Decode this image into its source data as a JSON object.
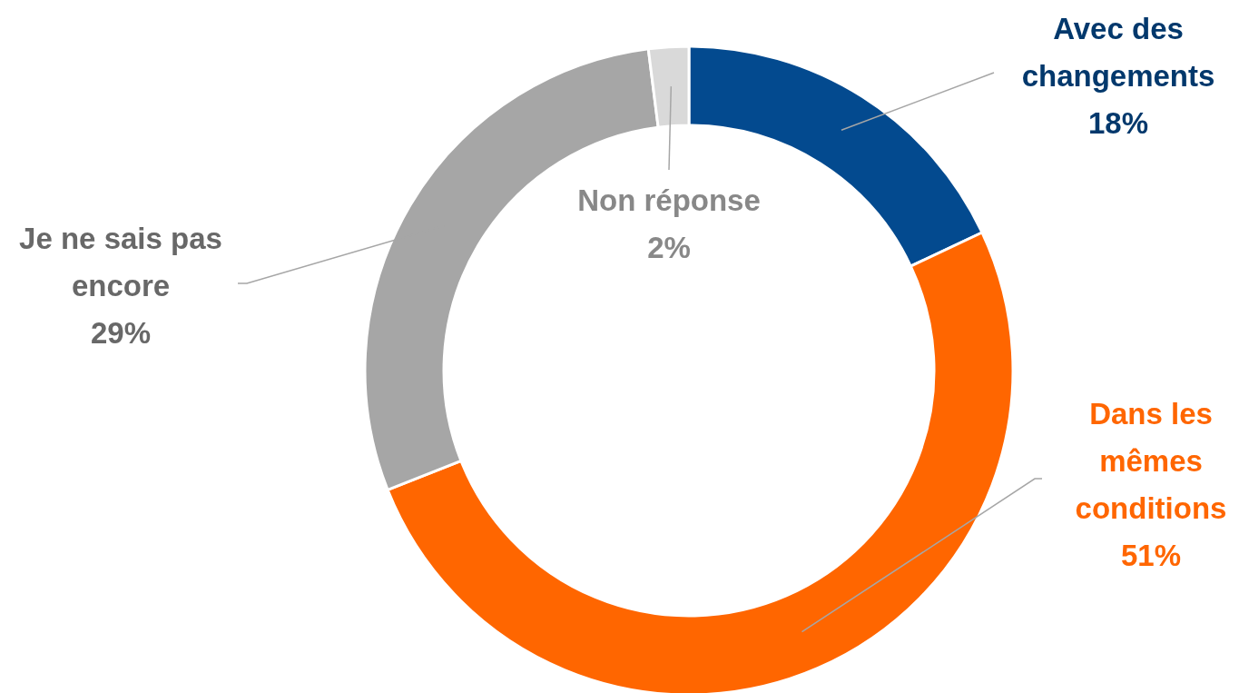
{
  "chart_data": {
    "type": "donut",
    "categories": [
      "Avec des changements",
      "Dans les mêmes conditions",
      "Je ne sais pas encore",
      "Non réponse"
    ],
    "values": [
      18,
      51,
      29,
      2
    ],
    "value_labels": [
      "18%",
      "51%",
      "29%",
      "2%"
    ],
    "colors": [
      "#034a8f",
      "#ff6600",
      "#a6a6a6",
      "#d9d9d9"
    ]
  }
}
